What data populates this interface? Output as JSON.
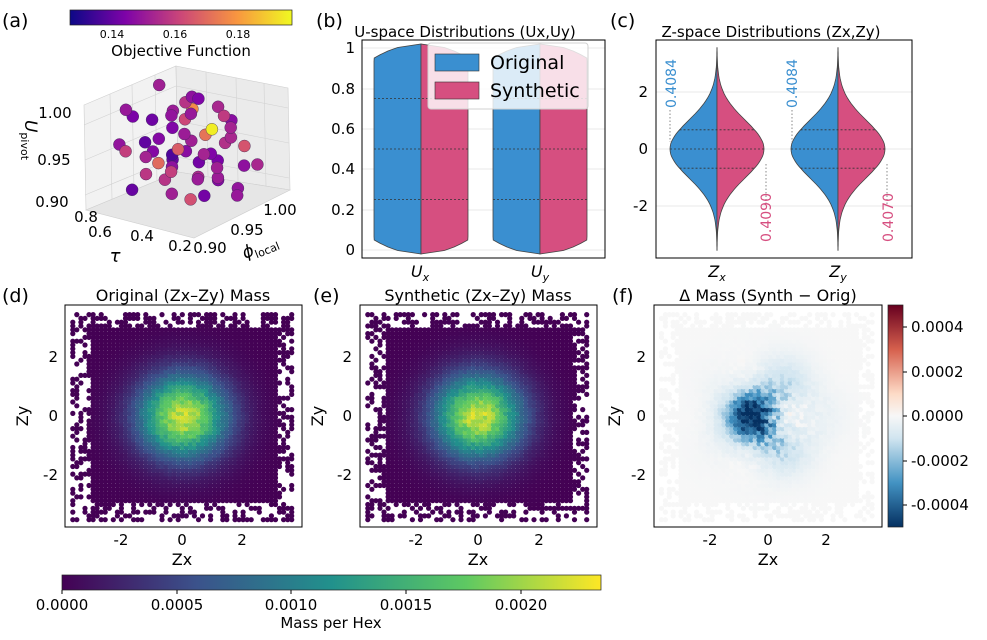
{
  "chart_data": [
    {
      "type": "scatter",
      "panel_label": "(a)",
      "projection": "3d",
      "axes": {
        "x": "τ",
        "y": "φ_local",
        "z": "U_pivot"
      },
      "x_ticks": [
        "0.2",
        "0.4",
        "0.6",
        "0.8"
      ],
      "y_ticks": [
        "0.90",
        "0.95",
        "1.00"
      ],
      "z_ticks": [
        "0.90",
        "0.95",
        "1.00"
      ],
      "xlim": [
        0.1,
        0.9
      ],
      "ylim": [
        0.88,
        1.02
      ],
      "zlim": [
        0.88,
        1.03
      ],
      "colorbar": {
        "label": "Objective Function",
        "range": [
          0.125,
          0.195
        ],
        "ticks": [
          "0.14",
          "0.16",
          "0.18"
        ],
        "colormap": "plasma"
      },
      "points": [
        [
          0.75,
          0.96,
          1.02,
          0.15
        ],
        [
          0.55,
          0.97,
          1.01,
          0.146
        ],
        [
          0.4,
          0.98,
          1.0,
          0.152
        ],
        [
          0.3,
          0.92,
          1.02,
          0.148
        ],
        [
          0.2,
          0.95,
          1.01,
          0.157
        ],
        [
          0.65,
          0.93,
          0.99,
          0.14
        ],
        [
          0.5,
          0.95,
          0.99,
          0.16
        ],
        [
          0.35,
          0.99,
          0.98,
          0.145
        ],
        [
          0.8,
          0.99,
          0.97,
          0.149
        ],
        [
          0.25,
          0.97,
          0.97,
          0.152
        ],
        [
          0.6,
          0.91,
          0.97,
          0.138
        ],
        [
          0.45,
          0.93,
          0.96,
          0.165
        ],
        [
          0.7,
          0.97,
          0.96,
          0.143
        ],
        [
          0.15,
          0.93,
          0.95,
          0.15
        ],
        [
          0.85,
          0.92,
          0.95,
          0.147
        ],
        [
          0.55,
          0.99,
          0.95,
          0.17
        ],
        [
          0.3,
          0.96,
          0.94,
          0.142
        ],
        [
          0.4,
          0.91,
          0.94,
          0.158
        ],
        [
          0.75,
          0.94,
          0.93,
          0.151
        ],
        [
          0.2,
          0.98,
          0.93,
          0.146
        ],
        [
          0.65,
          0.96,
          0.93,
          0.135
        ],
        [
          0.5,
          0.92,
          0.92,
          0.155
        ],
        [
          0.35,
          0.94,
          0.92,
          0.149
        ],
        [
          0.85,
          0.97,
          0.92,
          0.144
        ],
        [
          0.25,
          0.91,
          0.91,
          0.162
        ],
        [
          0.6,
          0.99,
          0.91,
          0.141
        ],
        [
          0.45,
          0.96,
          0.91,
          0.153
        ],
        [
          0.15,
          0.96,
          0.9,
          0.148
        ],
        [
          0.7,
          0.91,
          0.9,
          0.139
        ],
        [
          0.8,
          0.95,
          0.9,
          0.156
        ],
        [
          0.4,
          0.98,
          0.9,
          0.144
        ],
        [
          0.55,
          0.94,
          0.89,
          0.15
        ],
        [
          0.3,
          0.99,
          0.89,
          0.147
        ],
        [
          0.65,
          0.99,
          0.98,
          0.175
        ],
        [
          0.2,
          0.92,
          0.97,
          0.151
        ],
        [
          0.5,
          0.97,
          1.01,
          0.143
        ],
        [
          0.75,
          0.91,
          0.95,
          0.158
        ],
        [
          0.35,
          0.92,
          0.99,
          0.149
        ],
        [
          0.45,
          1.0,
          0.94,
          0.154
        ],
        [
          0.6,
          0.95,
          0.92,
          0.146
        ],
        [
          0.85,
          0.94,
          0.98,
          0.142
        ],
        [
          0.25,
          0.99,
          0.95,
          0.163
        ],
        [
          0.4,
          0.94,
          0.97,
          0.15
        ],
        [
          0.7,
          0.99,
          0.92,
          0.145
        ],
        [
          0.15,
          0.99,
          0.93,
          0.152
        ],
        [
          0.55,
          0.92,
          0.94,
          0.168
        ],
        [
          0.3,
          0.94,
          0.9,
          0.141
        ],
        [
          0.8,
          0.92,
          1.0,
          0.148
        ],
        [
          0.5,
          0.99,
          0.96,
          0.193
        ],
        [
          0.65,
          0.94,
          0.96,
          0.144
        ],
        [
          0.2,
          0.96,
          0.99,
          0.151
        ],
        [
          0.45,
          0.92,
          1.01,
          0.147
        ],
        [
          0.75,
          0.98,
          0.91,
          0.139
        ],
        [
          0.35,
          0.97,
          0.91,
          0.149
        ],
        [
          0.6,
          0.97,
          1.0,
          0.155
        ],
        [
          0.25,
          0.94,
          0.96,
          0.143
        ]
      ]
    },
    {
      "type": "violin",
      "panel_label": "(b)",
      "title": "U-space Distributions (Ux,Uy)",
      "categories": [
        "U_x",
        "U_y"
      ],
      "ylim": [
        -0.04,
        1.04
      ],
      "y_ticks": [
        0.0,
        0.2,
        0.4,
        0.6,
        0.8,
        1.0
      ],
      "quartiles": [
        0.25,
        0.5,
        0.75
      ],
      "series": [
        {
          "name": "Original",
          "color": "#3a8fd0"
        },
        {
          "name": "Synthetic",
          "color": "#d64f80"
        }
      ],
      "legend": "top-center"
    },
    {
      "type": "violin",
      "panel_label": "(c)",
      "title": "Z-space Distributions (Zx,Zy)",
      "categories": [
        "Z_x",
        "Z_y"
      ],
      "ylim": [
        -4.0,
        3.7
      ],
      "y_ticks": [
        -2,
        0,
        2
      ],
      "quartiles": [
        -0.674,
        0,
        0.674
      ],
      "annotations": [
        {
          "category": "Z_x",
          "series": "Original",
          "text": "0.4084"
        },
        {
          "category": "Z_x",
          "series": "Synthetic",
          "text": "0.4090"
        },
        {
          "category": "Z_y",
          "series": "Original",
          "text": "0.4084"
        },
        {
          "category": "Z_y",
          "series": "Synthetic",
          "text": "0.4070"
        }
      ]
    },
    {
      "type": "heatmap",
      "panel_label": "(d)",
      "title": "Original (Zx–Zy) Mass",
      "xlabel": "Zx",
      "ylabel": "Zy",
      "xlim": [
        -3.8,
        3.8
      ],
      "ylim": [
        -3.8,
        3.8
      ],
      "x_ticks": [
        -2,
        0,
        2
      ],
      "y_ticks": [
        -2,
        0,
        2
      ],
      "peak": 0.0024
    },
    {
      "type": "heatmap",
      "panel_label": "(e)",
      "title": "Synthetic (Zx–Zy) Mass",
      "xlabel": "Zx",
      "ylabel": "Zy",
      "xlim": [
        -3.8,
        3.8
      ],
      "ylim": [
        -3.8,
        3.8
      ],
      "x_ticks": [
        -2,
        0,
        2
      ],
      "y_ticks": [
        -2,
        0,
        2
      ],
      "peak": 0.0024
    },
    {
      "type": "heatmap",
      "panel_label": "(f)",
      "title": "Δ Mass (Synth − Orig)",
      "xlabel": "Zx",
      "ylabel": "Zy",
      "xlim": [
        -3.8,
        3.8
      ],
      "ylim": [
        -3.8,
        3.8
      ],
      "x_ticks": [
        -2,
        0,
        2
      ],
      "y_ticks": [
        -2,
        0,
        2
      ],
      "colorbar": {
        "range": [
          -0.0005,
          0.0005
        ],
        "ticks": [
          "0.0004",
          "0.0002",
          "0.0000",
          "-0.0002",
          "-0.0004"
        ],
        "colormap": "RdBu_r"
      }
    }
  ],
  "shared_colorbar": {
    "label": "Mass per Hex",
    "range": [
      0,
      0.00235
    ],
    "ticks": [
      "0.0000",
      "0.0005",
      "0.0010",
      "0.0015",
      "0.0020"
    ],
    "colormap": "viridis"
  }
}
